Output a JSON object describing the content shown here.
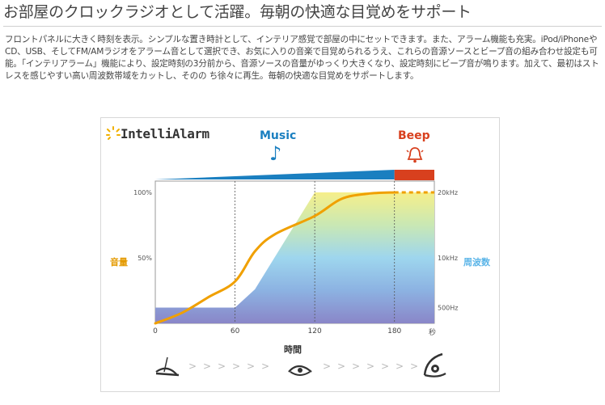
{
  "heading": "お部屋のクロックラジオとして活躍。毎朝の快適な目覚めをサポート",
  "description": "フロントパネルに大きく時刻を表示。シンプルな置き時計として、インテリア感覚で部屋の中にセットできます。また、アラーム機能も充実。iPod/iPhoneやCD、USB、そしてFM/AMラジオをアラーム音として選択でき、お気に入りの音楽で目覚められるうえ、これらの音源ソースとビープ音の組み合わせ設定も可能。「インテリアラーム」機能により、設定時刻の3分前から、音源ソースの音量がゆっくり大きくなり、設定時刻にビープ音が鳴ります。加えて、最初はストレスを感じやすい高い周波数帯域をカットし、そのの ち徐々に再生。毎朝の快適な目覚めをサポートします。",
  "figure": {
    "logo_text": "IntelliAlarm",
    "music_label": "Music",
    "beep_label": "Beep",
    "y_left_label": "音量",
    "y_right_label": "周波数",
    "x_label": "時間",
    "x_unit": "秒",
    "colors": {
      "music_blue": "#1a7fc0",
      "beep_red": "#d8401e",
      "curve_orange": "#f0a000",
      "label_orange": "#e49a00",
      "freq_blue": "#5bb5e8"
    },
    "icons": [
      "sun-rays-icon",
      "music-note-icon",
      "bell-icon",
      "eye-closed-icon",
      "eye-half-icon",
      "eye-open-icon"
    ]
  },
  "chart_data": {
    "type": "area",
    "x_ticks": [
      "0",
      "60",
      "120",
      "180"
    ],
    "y_left_ticks": [
      "100%",
      "50%"
    ],
    "y_right_ticks": [
      "20kHz",
      "10kHz",
      "500Hz"
    ],
    "xlim": [
      0,
      210
    ],
    "volume_curve": {
      "x": [
        0,
        20,
        40,
        60,
        75,
        90,
        120,
        140,
        160,
        180,
        210
      ],
      "y": [
        0,
        8,
        20,
        32,
        55,
        68,
        82,
        95,
        99,
        100,
        100
      ]
    },
    "frequency_band": {
      "x": [
        0,
        60,
        75,
        120,
        180,
        210
      ],
      "y": [
        12,
        12,
        26,
        100,
        100,
        100
      ]
    },
    "top_bar": {
      "music_range": [
        0,
        180
      ],
      "beep_range": [
        180,
        210
      ]
    }
  }
}
